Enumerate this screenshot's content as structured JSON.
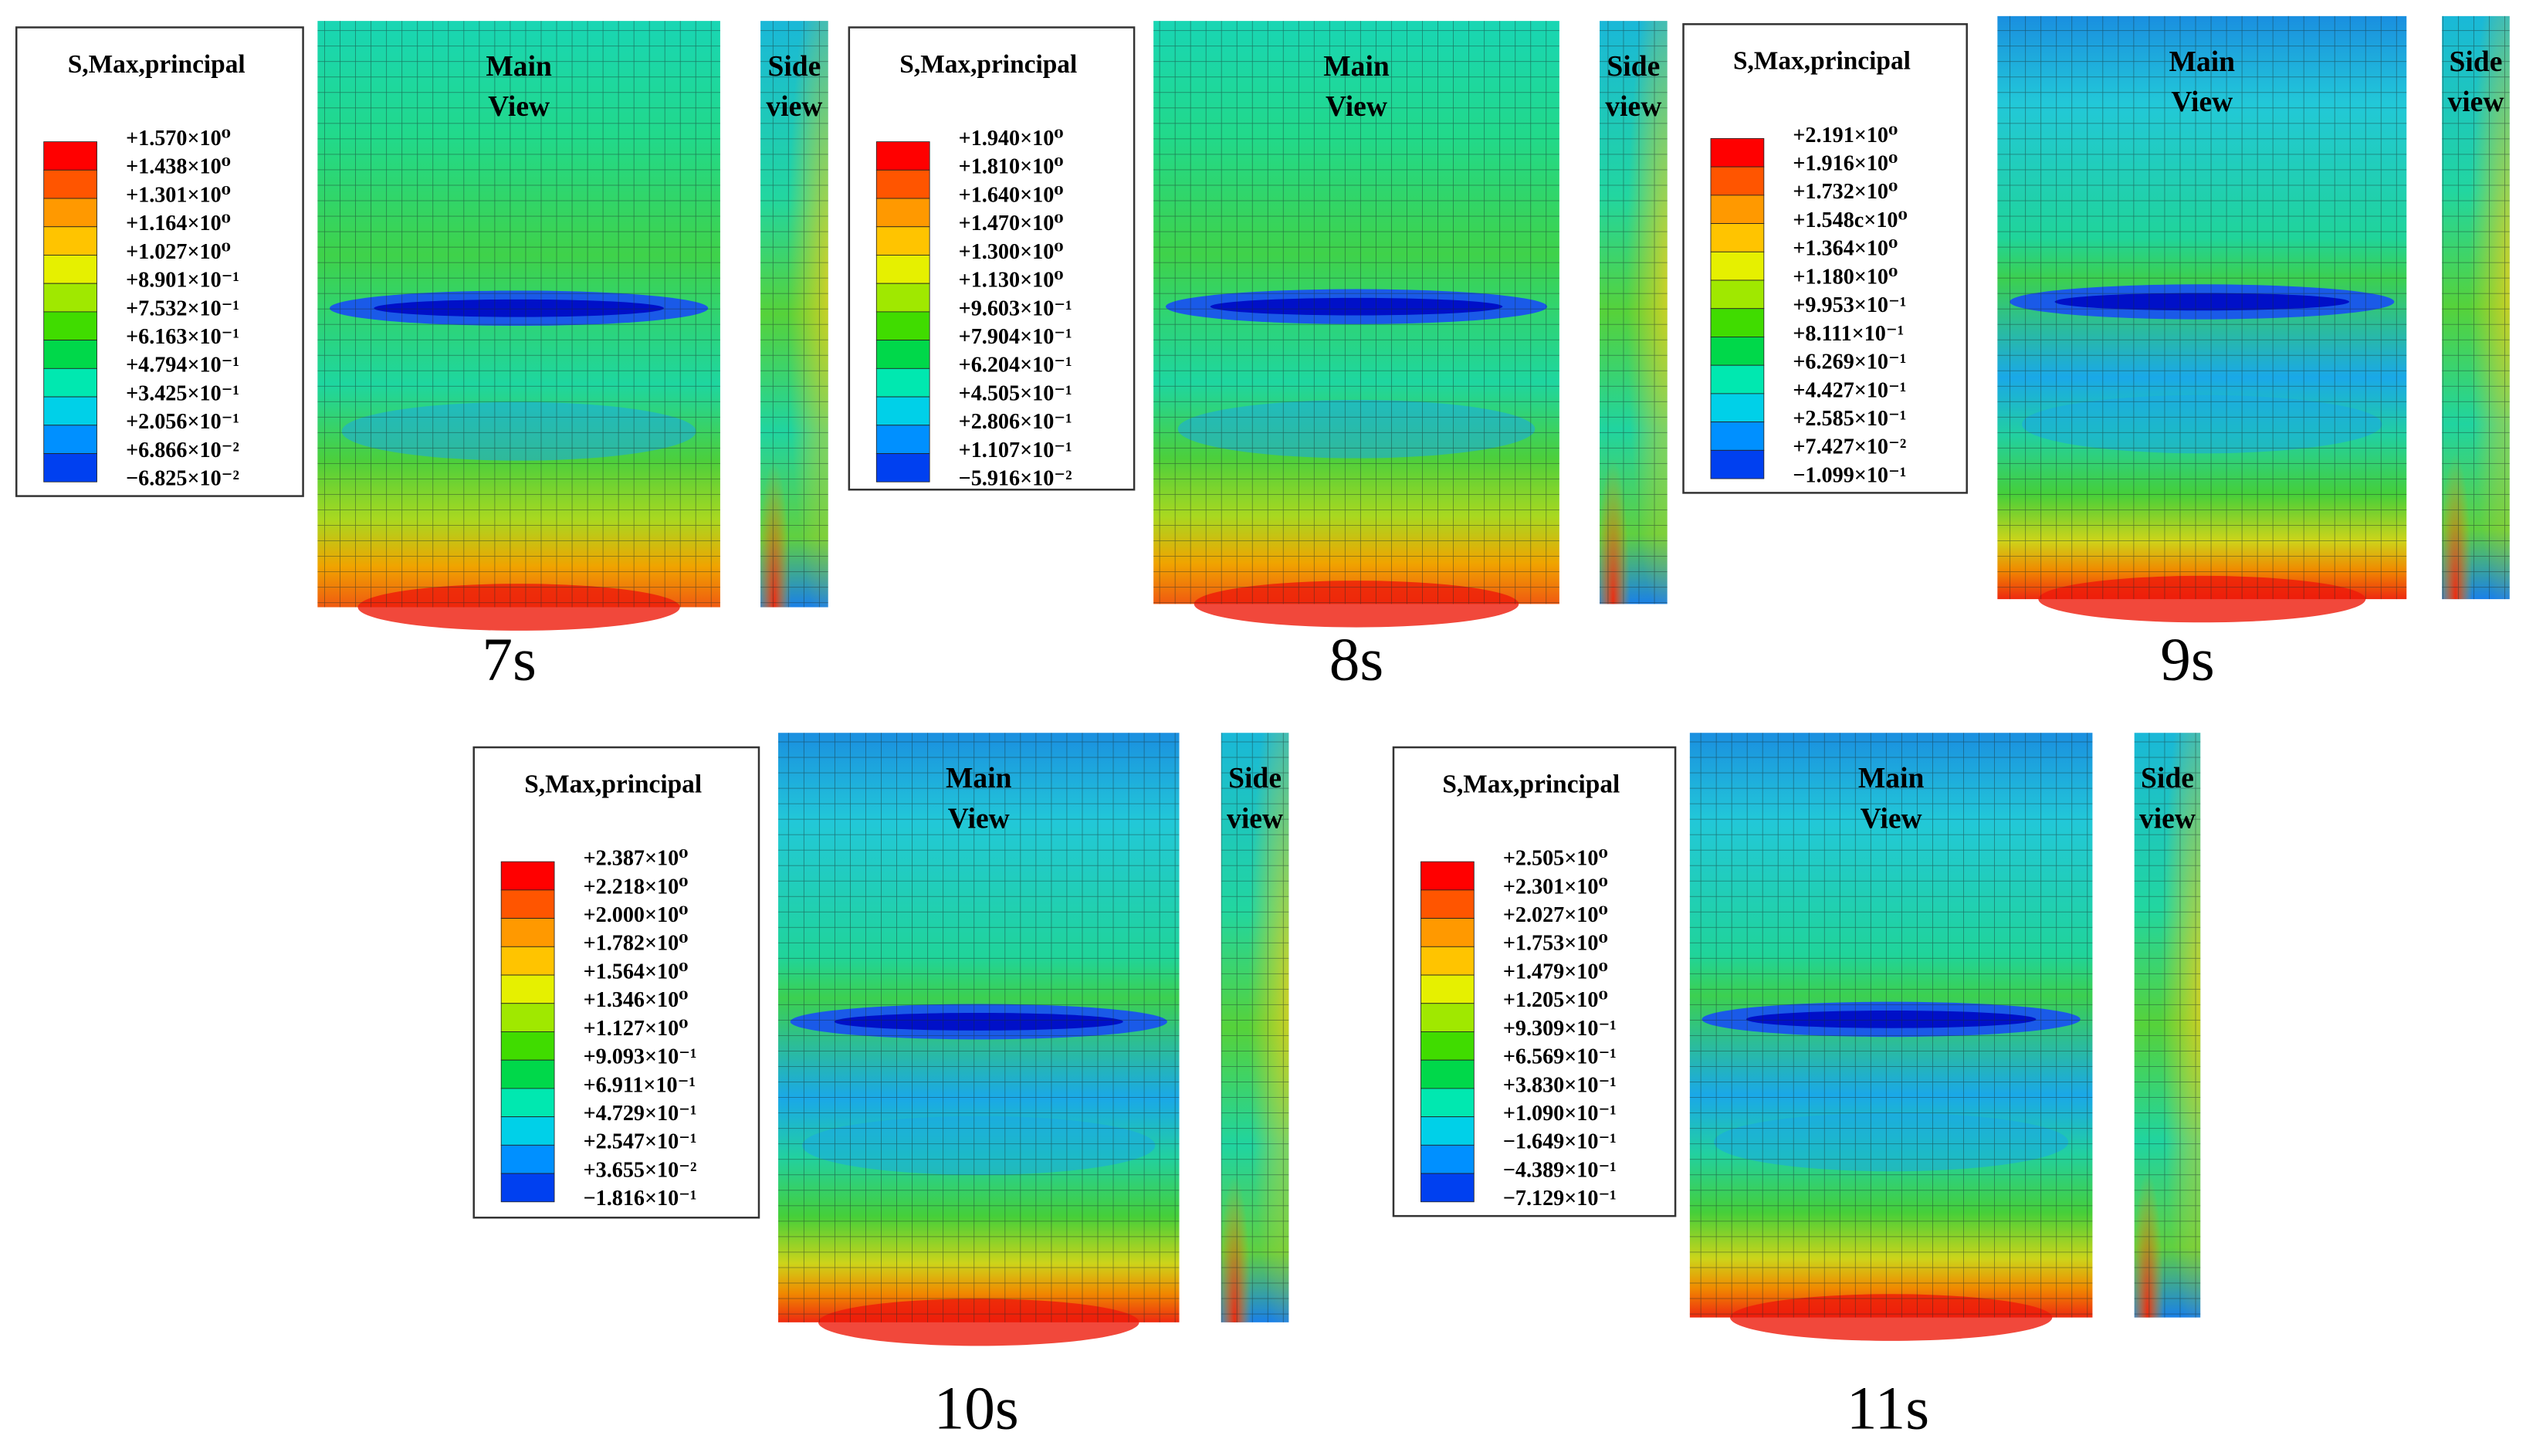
{
  "panels": [
    {
      "legend_title": "S,Max,principal",
      "legend_labels": [
        "+1.570×10⁰",
        "+1.438×10⁰",
        "+1.301×10⁰",
        "+1.164×10⁰",
        "+1.027×10⁰",
        "+8.901×10⁻¹",
        "+7.532×10⁻¹",
        "+6.163×10⁻¹",
        "+4.794×10⁻¹",
        "+3.425×10⁻¹",
        "+2.056×10⁻¹",
        "+6.866×10⁻²",
        "−6.825×10⁻²"
      ],
      "main_label": [
        "Main",
        "View"
      ],
      "side_label": [
        "Side",
        "view"
      ],
      "time": "7s"
    },
    {
      "legend_title": "S,Max,principal",
      "legend_labels": [
        "+1.940×10⁰",
        "+1.810×10⁰",
        "+1.640×10⁰",
        "+1.470×10⁰",
        "+1.300×10⁰",
        "+1.130×10⁰",
        "+9.603×10⁻¹",
        "+7.904×10⁻¹",
        "+6.204×10⁻¹",
        "+4.505×10⁻¹",
        "+2.806×10⁻¹",
        "+1.107×10⁻¹",
        "−5.916×10⁻²"
      ],
      "main_label": [
        "Main",
        "View"
      ],
      "side_label": [
        "Side",
        "view"
      ],
      "time": "8s"
    },
    {
      "legend_title": "S,Max,principal",
      "legend_labels": [
        "+2.191×10⁰",
        "+1.916×10⁰",
        "+1.732×10⁰",
        "+1.548c×10⁰",
        "+1.364×10⁰",
        "+1.180×10⁰",
        "+9.953×10⁻¹",
        "+8.111×10⁻¹",
        "+6.269×10⁻¹",
        "+4.427×10⁻¹",
        "+2.585×10⁻¹",
        "+7.427×10⁻²",
        "−1.099×10⁻¹"
      ],
      "main_label": [
        "Main",
        "View"
      ],
      "side_label": [
        "Side",
        "view"
      ],
      "time": "9s"
    },
    {
      "legend_title": "S,Max,principal",
      "legend_labels": [
        "+2.387×10⁰",
        "+2.218×10⁰",
        "+2.000×10⁰",
        "+1.782×10⁰",
        "+1.564×10⁰",
        "+1.346×10⁰",
        "+1.127×10⁰",
        "+9.093×10⁻¹",
        "+6.911×10⁻¹",
        "+4.729×10⁻¹",
        "+2.547×10⁻¹",
        "+3.655×10⁻²",
        "−1.816×10⁻¹"
      ],
      "main_label": [
        "Main",
        "View"
      ],
      "side_label": [
        "Side",
        "view"
      ],
      "time": "10s"
    },
    {
      "legend_title": "S,Max,principal",
      "legend_labels": [
        "+2.505×10⁰",
        "+2.301×10⁰",
        "+2.027×10⁰",
        "+1.753×10⁰",
        "+1.479×10⁰",
        "+1.205×10⁰",
        "+9.309×10⁻¹",
        "+6.569×10⁻¹",
        "+3.830×10⁻¹",
        "+1.090×10⁻¹",
        "−1.649×10⁻¹",
        "−4.389×10⁻¹",
        "−7.129×10⁻¹"
      ],
      "main_label": [
        "Main",
        "View"
      ],
      "side_label": [
        "Side",
        "view"
      ],
      "time": "11s"
    }
  ]
}
